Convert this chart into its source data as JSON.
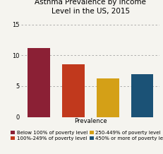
{
  "title": "Asthma Prevalence by Income\nLevel in the US, 2015",
  "xlabel": "Prevalence",
  "values": [
    11.2,
    8.5,
    6.3,
    7.0
  ],
  "bar_colors": [
    "#8B2035",
    "#C1391D",
    "#D4A017",
    "#1B5276"
  ],
  "ylim": [
    0,
    16
  ],
  "yticks": [
    0,
    5,
    10,
    15
  ],
  "legend_labels": [
    "Below 100% of poverty level",
    "100%-249% of poverty level",
    "250-449% of poverty level",
    "450% or more of poverty level"
  ],
  "legend_colors": [
    "#8B2035",
    "#C1391D",
    "#D4A017",
    "#1B5276"
  ],
  "background_color": "#f5f4ef",
  "title_fontsize": 7.5,
  "label_fontsize": 6,
  "tick_fontsize": 6,
  "legend_fontsize": 5
}
